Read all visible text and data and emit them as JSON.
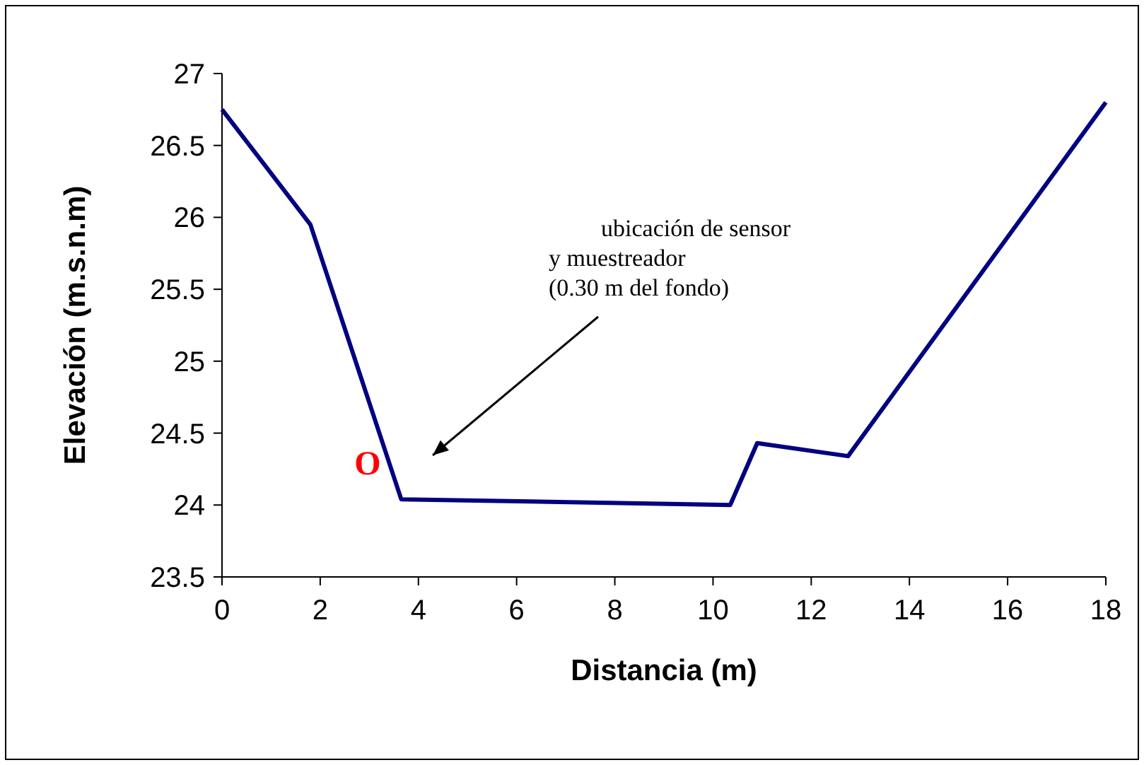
{
  "chart_data": {
    "type": "line",
    "xlabel": "Distancia (m)",
    "ylabel": "Elevación (m.s.n.m)",
    "x": [
      0,
      1.8,
      3.65,
      10.35,
      10.9,
      12.75,
      18
    ],
    "series": [
      {
        "color": "#000080",
        "values": [
          26.75,
          25.95,
          24.04,
          24.0,
          24.43,
          24.34,
          26.8
        ]
      }
    ],
    "xlim": [
      0,
      18
    ],
    "xticks": [
      0,
      2,
      4,
      6,
      8,
      10,
      12,
      14,
      16,
      18
    ],
    "ylim": [
      23.5,
      27
    ],
    "yticks": [
      23.5,
      24,
      24.5,
      25,
      25.5,
      26,
      26.5,
      27
    ],
    "grid": false,
    "marker": "none",
    "line_style": "solid",
    "annotations": [
      "O",
      "ubicación de sensor\ny muestreador\n(0.30 m del fondo)"
    ]
  }
}
